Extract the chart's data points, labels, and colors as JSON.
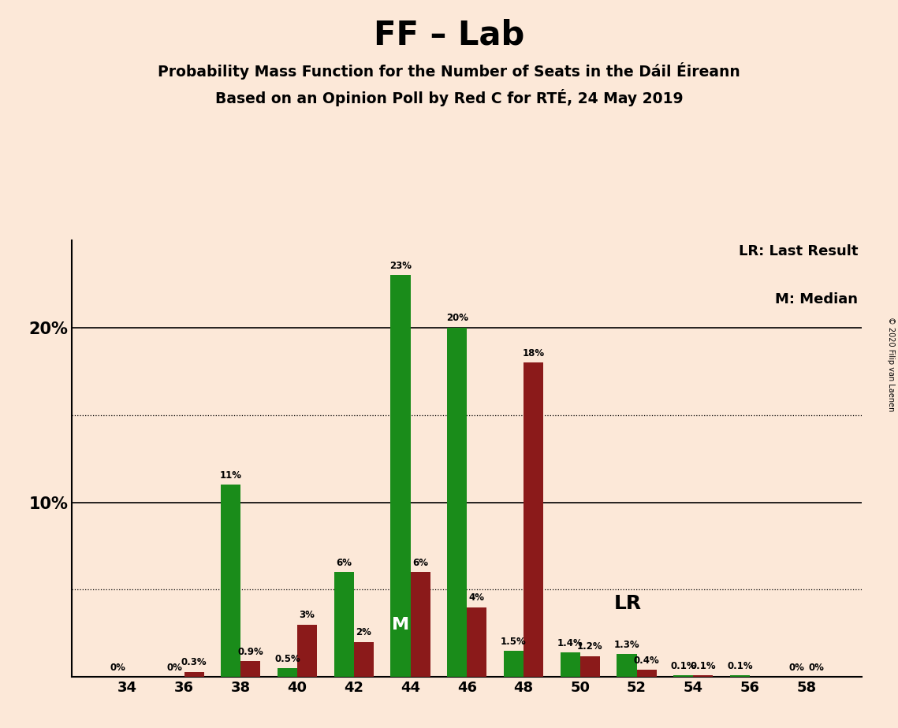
{
  "title": "FF – Lab",
  "subtitle1": "Probability Mass Function for the Number of Seats in the Dáil Éireann",
  "subtitle2": "Based on an Opinion Poll by Red C for RTÉ, 24 May 2019",
  "copyright": "© 2020 Filip van Laenen",
  "seats": [
    34,
    36,
    38,
    40,
    42,
    44,
    46,
    48,
    50,
    52,
    54,
    56,
    58
  ],
  "green_values": [
    0.0,
    0.0,
    11.0,
    0.5,
    6.0,
    23.0,
    20.0,
    1.5,
    1.4,
    1.3,
    0.1,
    0.1,
    0.0
  ],
  "red_values": [
    0.0,
    0.3,
    0.9,
    3.0,
    2.0,
    6.0,
    4.0,
    18.0,
    1.2,
    0.4,
    0.1,
    0.0,
    0.0
  ],
  "green_labels": [
    "0%",
    "0%",
    "11%",
    "0.5%",
    "6%",
    "23%",
    "20%",
    "1.5%",
    "1.4%",
    "1.3%",
    "0.1%",
    "0.1%",
    "0%"
  ],
  "red_labels": [
    "",
    "0.3%",
    "0.9%",
    "3%",
    "2%",
    "6%",
    "4%",
    "18%",
    "1.2%",
    "0.4%",
    "0.1%",
    "",
    "0%"
  ],
  "green_color": "#1a8c1a",
  "red_color": "#8b1a1a",
  "background_color": "#fce8d8",
  "median_seat": 44,
  "lr_seat": 49,
  "ylim": [
    0,
    25
  ],
  "legend_lr": "LR: Last Result",
  "legend_m": "M: Median",
  "lr_label": "LR",
  "m_label": "M",
  "yticks": [
    10,
    20
  ],
  "ytick_labels": [
    "10%",
    "20%"
  ],
  "dotted_lines": [
    5,
    15
  ]
}
